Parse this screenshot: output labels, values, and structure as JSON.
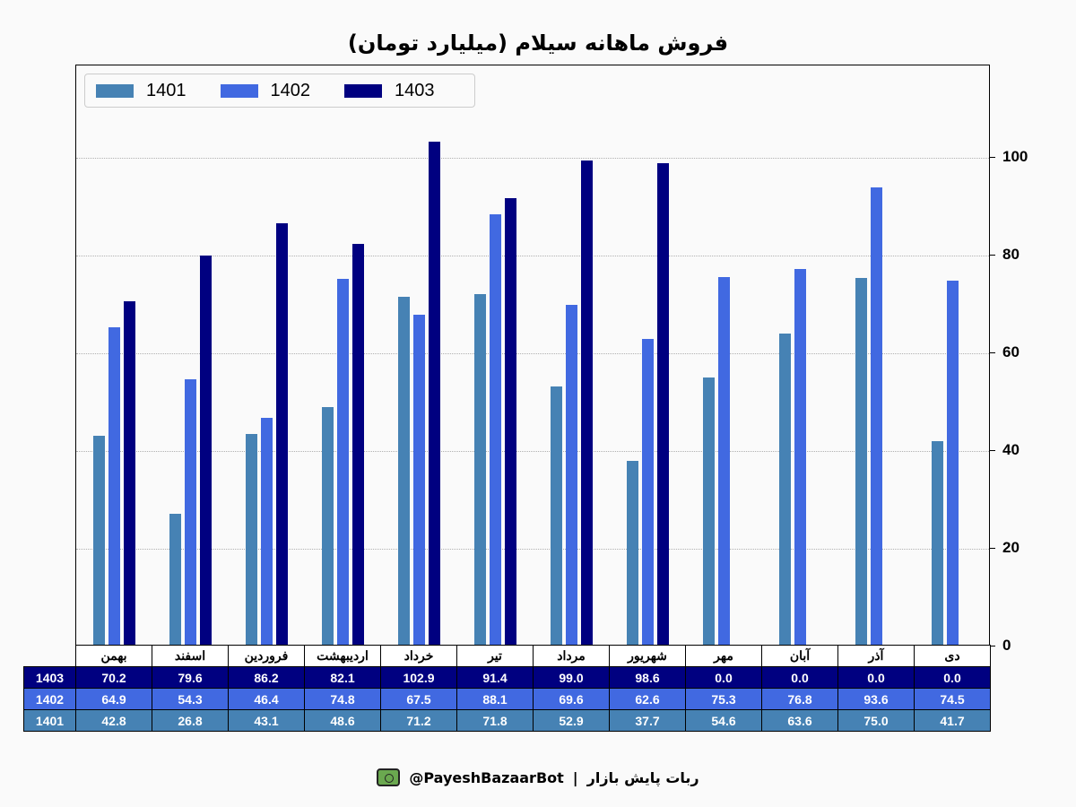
{
  "chart_data": {
    "type": "bar",
    "title": "فروش ماهانه سیلام (میلیارد تومان)",
    "xlabel": "",
    "ylabel": "",
    "ylim": [
      0,
      118.9
    ],
    "yticks": [
      0,
      20,
      40,
      60,
      80,
      100
    ],
    "y_axis_position": "right",
    "grid": "horizontal dotted",
    "legend_position": "upper left",
    "categories": [
      "بهمن",
      "اسفند",
      "فروردین",
      "اردیبهشت",
      "خرداد",
      "تیر",
      "مرداد",
      "شهریور",
      "مهر",
      "آبان",
      "آذر",
      "دی"
    ],
    "series": [
      {
        "name": "1401",
        "color": "#4682b4",
        "values": [
          42.8,
          26.8,
          43.1,
          48.6,
          71.2,
          71.8,
          52.9,
          37.7,
          54.6,
          63.6,
          75.0,
          41.7
        ]
      },
      {
        "name": "1402",
        "color": "#4169e1",
        "values": [
          64.9,
          54.3,
          46.4,
          74.8,
          67.5,
          88.1,
          69.6,
          62.6,
          75.3,
          76.8,
          93.6,
          74.5
        ]
      },
      {
        "name": "1403",
        "color": "#000080",
        "values": [
          70.2,
          79.6,
          86.2,
          82.1,
          102.9,
          91.4,
          99.0,
          98.6,
          0.0,
          0.0,
          0.0,
          0.0
        ]
      }
    ]
  },
  "table": {
    "rows": [
      {
        "label": "1403",
        "color": "#000080",
        "values": [
          "70.2",
          "79.6",
          "86.2",
          "82.1",
          "102.9",
          "91.4",
          "99.0",
          "98.6",
          "0.0",
          "0.0",
          "0.0",
          "0.0"
        ]
      },
      {
        "label": "1402",
        "color": "#4169e1",
        "values": [
          "64.9",
          "54.3",
          "46.4",
          "74.8",
          "67.5",
          "88.1",
          "69.6",
          "62.6",
          "75.3",
          "76.8",
          "93.6",
          "74.5"
        ]
      },
      {
        "label": "1401",
        "color": "#4682b4",
        "values": [
          "42.8",
          "26.8",
          "43.1",
          "48.6",
          "71.2",
          "71.8",
          "52.9",
          "37.7",
          "54.6",
          "63.6",
          "75.0",
          "41.7"
        ]
      }
    ]
  },
  "footer": {
    "text": "ربات پایش بازار",
    "separator": "|",
    "handle": "@PayeshBazaarBot",
    "icon": "robot-monitor-icon"
  }
}
